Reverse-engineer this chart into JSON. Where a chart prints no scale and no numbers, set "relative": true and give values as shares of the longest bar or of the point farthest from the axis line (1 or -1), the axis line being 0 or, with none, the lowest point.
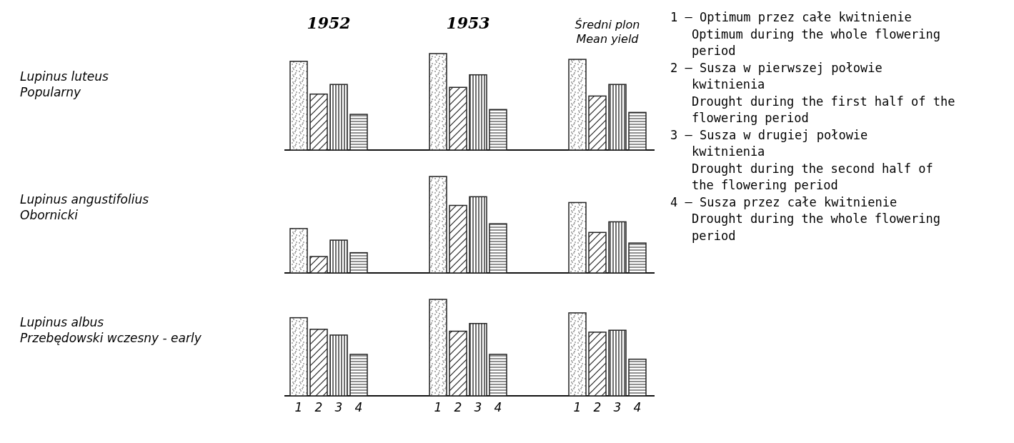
{
  "chart_data": [
    {
      "type": "bar",
      "ylabel": "Lupinus luteus\nPopularny",
      "relative": true,
      "categories": [
        "1952",
        "1953",
        "Średni plon\nMean yield"
      ],
      "series": [
        {
          "color": "#222222",
          "values": [
            0.92,
            1,
            0.94
          ]
        },
        {
          "color": "#222222",
          "values": [
            0.58,
            0.65,
            0.56
          ]
        },
        {
          "color": "#222222",
          "values": [
            0.68,
            0.78,
            0.68
          ]
        },
        {
          "color": "#222222",
          "values": [
            0.37,
            0.42,
            0.39
          ]
        }
      ]
    },
    {
      "type": "bar",
      "ylabel": "Lupinus angustifolius\nObornicki",
      "relative": true,
      "categories": [
        null,
        null,
        null
      ],
      "series": [
        {
          "color": "#222222",
          "values": [
            0.46,
            1,
            0.73
          ]
        },
        {
          "color": "#222222",
          "values": [
            0.17,
            0.7,
            0.42
          ]
        },
        {
          "color": "#222222",
          "values": [
            0.34,
            0.79,
            0.53
          ]
        },
        {
          "color": "#222222",
          "values": [
            0.21,
            0.51,
            0.31
          ]
        }
      ]
    },
    {
      "type": "bar",
      "ylabel": "Lupinus albus\nPrzebędowski wczesny - early",
      "relative": true,
      "categories": [
        null,
        null,
        null
      ],
      "series": [
        {
          "name": "1",
          "color": "#222222",
          "values": [
            0.81,
            1,
            0.86
          ]
        },
        {
          "name": "2",
          "color": "#222222",
          "values": [
            0.69,
            0.67,
            0.66
          ]
        },
        {
          "name": "3",
          "color": "#222222",
          "values": [
            0.63,
            0.75,
            0.68
          ]
        },
        {
          "name": "4",
          "color": "#222222",
          "values": [
            0.43,
            0.43,
            0.38
          ]
        }
      ]
    },
    {
      "type": "other",
      "annotations": [
        "1 — Optimum przez całe kwitnienie",
        "Optimum during the whole flowering period",
        "2 — Susza w pierwszej połowie kwitnienia",
        "Drought during the first half of the flowering period",
        "3 — Susza w drugiej połowie kwitnienia",
        "Drought during the second half of the flowering period",
        "4 — Susza przez całe kwitnienie",
        "Drought during the whole flowering period"
      ]
    }
  ]
}
